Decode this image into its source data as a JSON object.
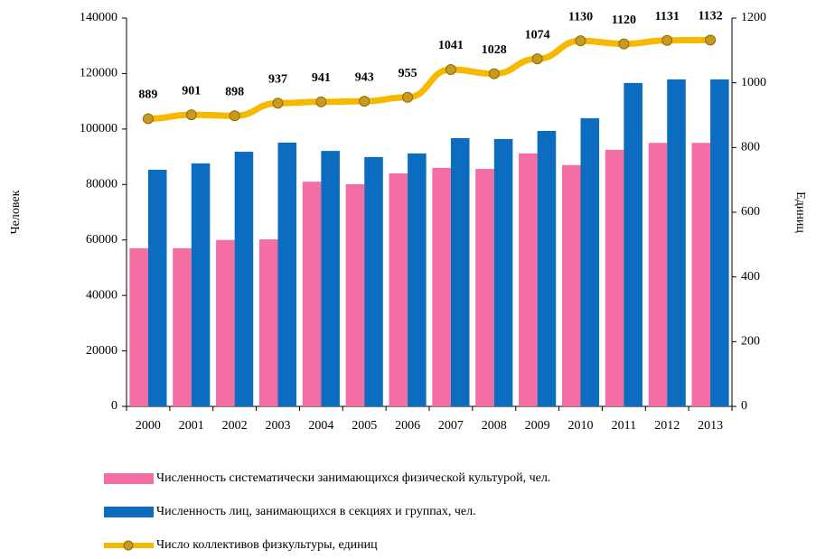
{
  "chart_data": {
    "type": "bar_line",
    "categories": [
      "2000",
      "2001",
      "2002",
      "2003",
      "2004",
      "2005",
      "2006",
      "2007",
      "2008",
      "2009",
      "2010",
      "2011",
      "2012",
      "2013"
    ],
    "ylabel": "Человек",
    "y2label": "Единиц",
    "ylim": [
      0,
      140000
    ],
    "yticks": [
      0,
      20000,
      40000,
      60000,
      80000,
      100000,
      120000,
      140000
    ],
    "y2lim": [
      0,
      1200
    ],
    "y2ticks": [
      0,
      200,
      400,
      600,
      800,
      1000,
      1200
    ],
    "series": [
      {
        "name": "Численность систематически занимающихся физической культурой, чел.",
        "type": "bar",
        "color": "#f36ea3",
        "values": [
          57000,
          57000,
          60000,
          60200,
          81000,
          80100,
          84000,
          86000,
          85600,
          91200,
          87000,
          92500,
          95000,
          95000
        ]
      },
      {
        "name": "Численность лиц, занимающихся в секциях и группах, чел.",
        "type": "bar",
        "color": "#0b6cc0",
        "values": [
          85300,
          87600,
          91800,
          95100,
          92100,
          89900,
          91200,
          96700,
          96400,
          99300,
          103900,
          116600,
          117900,
          117900
        ]
      },
      {
        "name": "Число коллективов физкультуры, единиц",
        "type": "line",
        "axis": "y2",
        "color": "#f7b900",
        "values": [
          889,
          901,
          898,
          937,
          941,
          943,
          955,
          1041,
          1028,
          1074,
          1130,
          1120,
          1131,
          1132
        ]
      }
    ]
  }
}
